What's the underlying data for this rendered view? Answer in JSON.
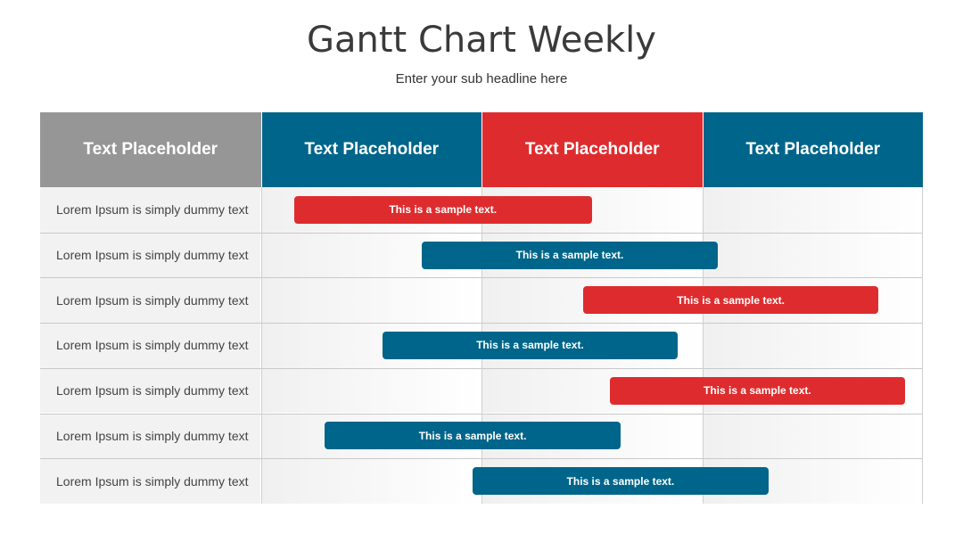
{
  "title": "Gantt Chart Weekly",
  "subtitle": "Enter your sub headline here",
  "colors": {
    "gray_header": "#969696",
    "blue": "#00658a",
    "red": "#de2c2e"
  },
  "chart_data": {
    "type": "gantt",
    "columns": [
      {
        "label": "Text Placeholder",
        "color": "#969696"
      },
      {
        "label": "Text Placeholder",
        "color": "#00658a"
      },
      {
        "label": "Text Placeholder",
        "color": "#de2c2e"
      },
      {
        "label": "Text Placeholder",
        "color": "#00658a"
      }
    ],
    "rows": [
      {
        "label": "Lorem Ipsum is simply dummy text",
        "bar_text": "This is a sample text.",
        "start": 0.15,
        "end": 1.5,
        "color": "#de2c2e"
      },
      {
        "label": "Lorem Ipsum is simply dummy text",
        "bar_text": "This is a sample text.",
        "start": 0.73,
        "end": 2.07,
        "color": "#00658a"
      },
      {
        "label": "Lorem Ipsum is simply dummy text",
        "bar_text": "This is a sample text.",
        "start": 1.46,
        "end": 2.8,
        "color": "#de2c2e"
      },
      {
        "label": "Lorem Ipsum is simply dummy text",
        "bar_text": "This is a sample text.",
        "start": 0.55,
        "end": 1.89,
        "color": "#00658a"
      },
      {
        "label": "Lorem Ipsum is simply dummy text",
        "bar_text": "This is a sample text.",
        "start": 1.58,
        "end": 2.92,
        "color": "#de2c2e"
      },
      {
        "label": "Lorem Ipsum is simply dummy text",
        "bar_text": "This is a sample text.",
        "start": 0.29,
        "end": 1.63,
        "color": "#00658a"
      },
      {
        "label": "Lorem Ipsum is simply dummy text",
        "bar_text": "This is a sample text.",
        "start": 0.96,
        "end": 2.3,
        "color": "#00658a"
      }
    ]
  }
}
